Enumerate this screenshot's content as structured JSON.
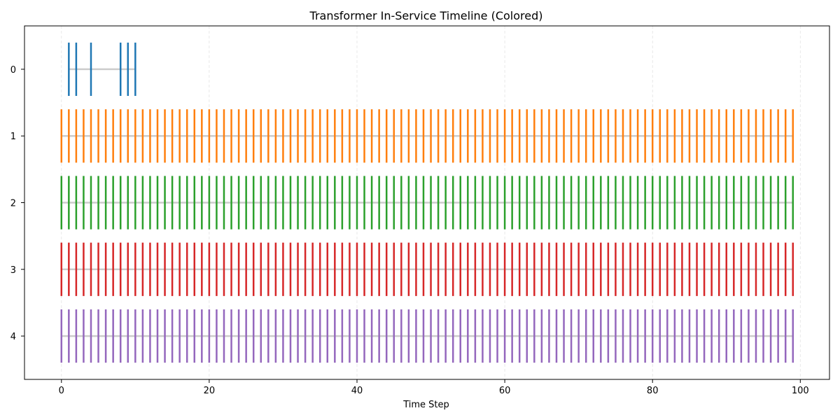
{
  "chart_data": {
    "type": "eventplot",
    "title": "Transformer In-Service Timeline (Colored)",
    "xlabel": "Time Step",
    "ylabel": "",
    "xlim": [
      -5,
      103.95
    ],
    "ylim": [
      4.65,
      -0.65
    ],
    "x_ticks": [
      0,
      20,
      40,
      60,
      80,
      100
    ],
    "y_ticks": [
      0,
      1,
      2,
      3,
      4
    ],
    "grid": {
      "x": true,
      "y": false,
      "style": "dashed"
    },
    "event_line_length": 0.8,
    "baseline_color": "#cccccc",
    "series": [
      {
        "row": 0,
        "color": "#1f77b4",
        "events": [
          1,
          2,
          4,
          8,
          9,
          10
        ]
      },
      {
        "row": 1,
        "color": "#ff7f0e",
        "event_range": [
          0,
          99
        ]
      },
      {
        "row": 2,
        "color": "#2ca02c",
        "event_range": [
          0,
          99
        ]
      },
      {
        "row": 3,
        "color": "#d62728",
        "event_range": [
          0,
          99
        ]
      },
      {
        "row": 4,
        "color": "#9467bd",
        "event_range": [
          0,
          99
        ]
      }
    ]
  }
}
